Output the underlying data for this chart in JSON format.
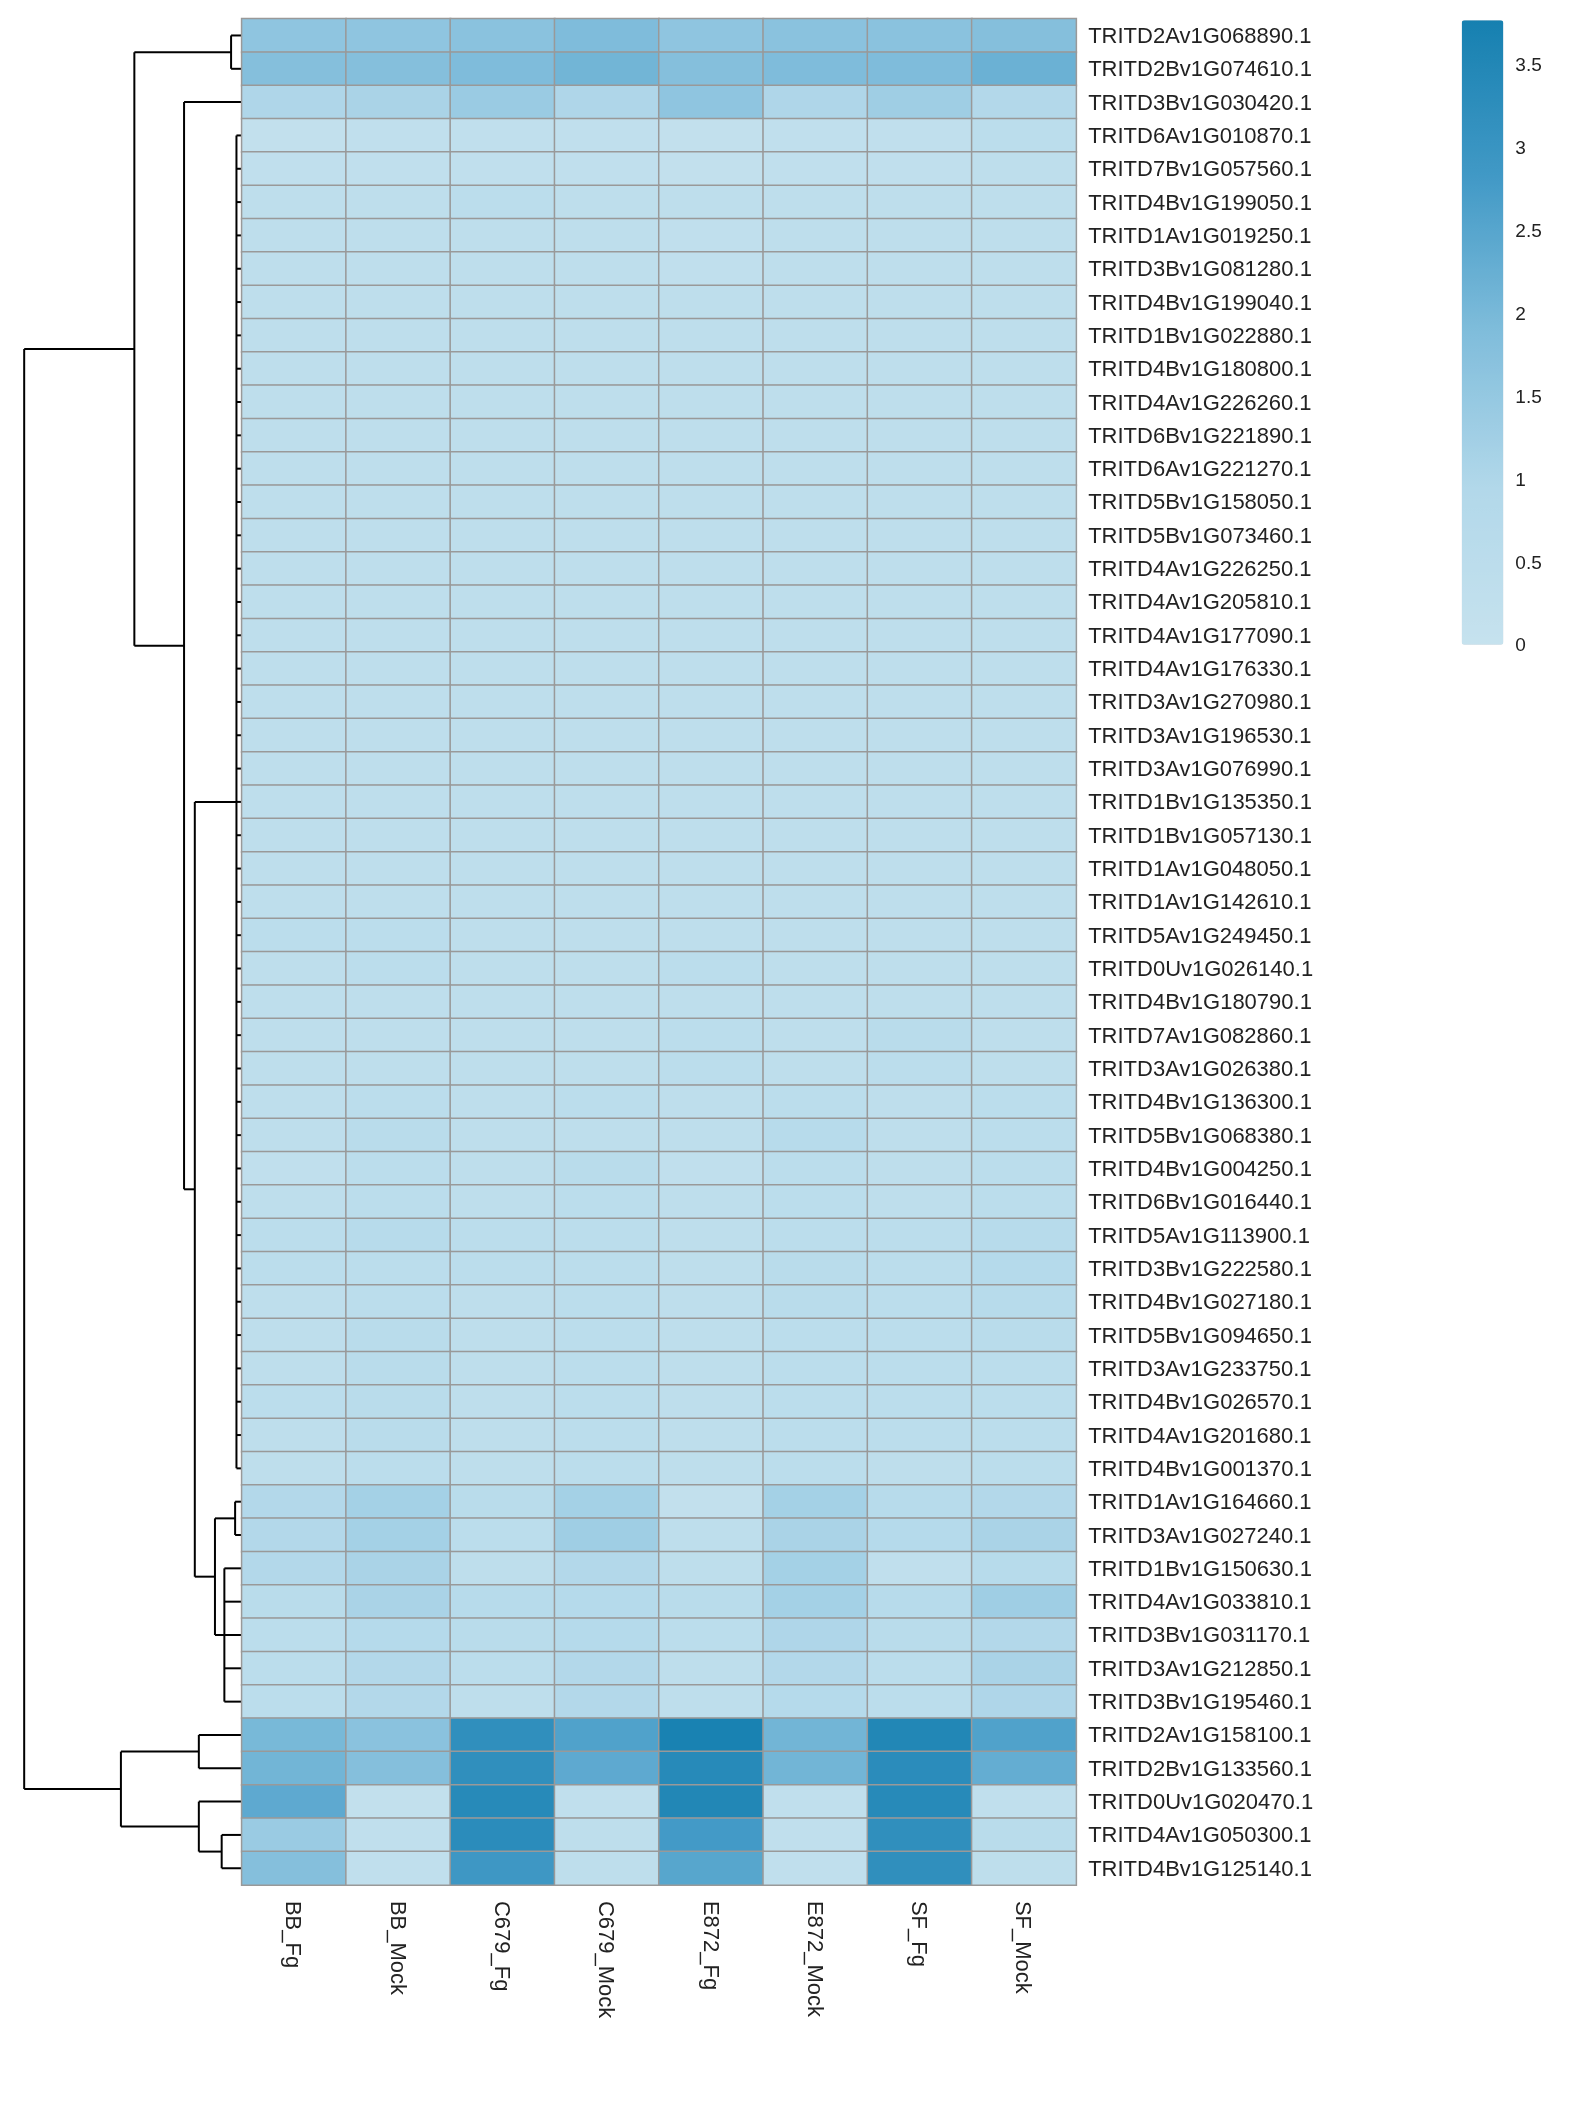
{
  "chart_data": {
    "type": "heatmap",
    "categories": [
      "BB_Fg",
      "BB_Mock",
      "C679_Fg",
      "C679_Mock",
      "E872_Fg",
      "E872_Mock",
      "SF_Fg",
      "SF_Mock"
    ],
    "y_categories": [
      "TRITD2Av1G068890.1",
      "TRITD2Bv1G074610.1",
      "TRITD3Bv1G030420.1",
      "TRITD6Av1G010870.1",
      "TRITD7Bv1G057560.1",
      "TRITD4Bv1G199050.1",
      "TRITD1Av1G019250.1",
      "TRITD3Bv1G081280.1",
      "TRITD4Bv1G199040.1",
      "TRITD1Bv1G022880.1",
      "TRITD4Bv1G180800.1",
      "TRITD4Av1G226260.1",
      "TRITD6Bv1G221890.1",
      "TRITD6Av1G221270.1",
      "TRITD5Bv1G158050.1",
      "TRITD5Bv1G073460.1",
      "TRITD4Av1G226250.1",
      "TRITD4Av1G205810.1",
      "TRITD4Av1G177090.1",
      "TRITD4Av1G176330.1",
      "TRITD3Av1G270980.1",
      "TRITD3Av1G196530.1",
      "TRITD3Av1G076990.1",
      "TRITD1Bv1G135350.1",
      "TRITD1Bv1G057130.1",
      "TRITD1Av1G048050.1",
      "TRITD1Av1G142610.1",
      "TRITD5Av1G249450.1",
      "TRITD0Uv1G026140.1",
      "TRITD4Bv1G180790.1",
      "TRITD7Av1G082860.1",
      "TRITD3Av1G026380.1",
      "TRITD4Bv1G136300.1",
      "TRITD5Bv1G068380.1",
      "TRITD4Bv1G004250.1",
      "TRITD6Bv1G016440.1",
      "TRITD5Av1G113900.1",
      "TRITD3Bv1G222580.1",
      "TRITD4Bv1G027180.1",
      "TRITD5Bv1G094650.1",
      "TRITD3Av1G233750.1",
      "TRITD4Bv1G026570.1",
      "TRITD4Av1G201680.1",
      "TRITD4Bv1G001370.1",
      "TRITD1Av1G164660.1",
      "TRITD3Av1G027240.1",
      "TRITD1Bv1G150630.1",
      "TRITD4Av1G033810.1",
      "TRITD3Bv1G031170.1",
      "TRITD3Av1G212850.1",
      "TRITD3Bv1G195460.1",
      "TRITD2Av1G158100.1",
      "TRITD2Bv1G133560.1",
      "TRITD0Uv1G020470.1",
      "TRITD4Av1G050300.1",
      "TRITD4Bv1G125140.1"
    ],
    "cells": [
      [
        1.6,
        1.6,
        1.7,
        1.9,
        1.6,
        1.7,
        1.7,
        1.8
      ],
      [
        1.8,
        1.8,
        1.9,
        2.1,
        1.8,
        1.9,
        1.9,
        2.2
      ],
      [
        1.0,
        1.1,
        1.4,
        1.0,
        1.6,
        1.0,
        1.3,
        0.9
      ],
      [
        0.2,
        0.3,
        0.3,
        0.3,
        0.2,
        0.3,
        0.3,
        0.5
      ],
      [
        0.3,
        0.3,
        0.3,
        0.3,
        0.2,
        0.3,
        0.3,
        0.4
      ],
      [
        0.4,
        0.4,
        0.5,
        0.4,
        0.4,
        0.4,
        0.4,
        0.4
      ],
      [
        0.4,
        0.4,
        0.4,
        0.4,
        0.3,
        0.4,
        0.4,
        0.4
      ],
      [
        0.4,
        0.4,
        0.4,
        0.4,
        0.3,
        0.4,
        0.4,
        0.4
      ],
      [
        0.4,
        0.4,
        0.4,
        0.4,
        0.4,
        0.4,
        0.4,
        0.4
      ],
      [
        0.4,
        0.4,
        0.4,
        0.4,
        0.4,
        0.4,
        0.4,
        0.4
      ],
      [
        0.4,
        0.4,
        0.4,
        0.4,
        0.4,
        0.4,
        0.4,
        0.4
      ],
      [
        0.4,
        0.4,
        0.4,
        0.4,
        0.4,
        0.4,
        0.4,
        0.4
      ],
      [
        0.4,
        0.4,
        0.4,
        0.4,
        0.4,
        0.4,
        0.4,
        0.4
      ],
      [
        0.4,
        0.4,
        0.4,
        0.4,
        0.4,
        0.4,
        0.4,
        0.4
      ],
      [
        0.4,
        0.4,
        0.4,
        0.4,
        0.4,
        0.4,
        0.4,
        0.4
      ],
      [
        0.4,
        0.4,
        0.4,
        0.4,
        0.4,
        0.4,
        0.4,
        0.4
      ],
      [
        0.4,
        0.4,
        0.4,
        0.4,
        0.4,
        0.4,
        0.4,
        0.4
      ],
      [
        0.4,
        0.4,
        0.4,
        0.4,
        0.4,
        0.4,
        0.4,
        0.4
      ],
      [
        0.4,
        0.4,
        0.4,
        0.4,
        0.4,
        0.4,
        0.4,
        0.4
      ],
      [
        0.4,
        0.4,
        0.4,
        0.4,
        0.4,
        0.4,
        0.4,
        0.4
      ],
      [
        0.4,
        0.4,
        0.4,
        0.4,
        0.4,
        0.4,
        0.4,
        0.4
      ],
      [
        0.4,
        0.4,
        0.4,
        0.4,
        0.4,
        0.4,
        0.4,
        0.4
      ],
      [
        0.4,
        0.4,
        0.4,
        0.4,
        0.4,
        0.4,
        0.4,
        0.4
      ],
      [
        0.4,
        0.4,
        0.4,
        0.4,
        0.4,
        0.4,
        0.4,
        0.4
      ],
      [
        0.4,
        0.4,
        0.4,
        0.4,
        0.4,
        0.4,
        0.4,
        0.4
      ],
      [
        0.4,
        0.4,
        0.4,
        0.4,
        0.4,
        0.4,
        0.4,
        0.4
      ],
      [
        0.4,
        0.4,
        0.4,
        0.4,
        0.4,
        0.4,
        0.4,
        0.4
      ],
      [
        0.5,
        0.5,
        0.4,
        0.4,
        0.4,
        0.4,
        0.4,
        0.4
      ],
      [
        0.4,
        0.5,
        0.4,
        0.4,
        0.5,
        0.4,
        0.4,
        0.4
      ],
      [
        0.4,
        0.4,
        0.4,
        0.4,
        0.4,
        0.4,
        0.4,
        0.4
      ],
      [
        0.4,
        0.4,
        0.4,
        0.4,
        0.5,
        0.4,
        0.6,
        0.4
      ],
      [
        0.4,
        0.4,
        0.4,
        0.4,
        0.5,
        0.4,
        0.5,
        0.4
      ],
      [
        0.4,
        0.5,
        0.4,
        0.5,
        0.4,
        0.5,
        0.4,
        0.5
      ],
      [
        0.4,
        0.6,
        0.4,
        0.4,
        0.4,
        0.7,
        0.4,
        0.5
      ],
      [
        0.3,
        0.5,
        0.4,
        0.6,
        0.3,
        0.5,
        0.4,
        0.5
      ],
      [
        0.4,
        0.5,
        0.4,
        0.5,
        0.4,
        0.5,
        0.4,
        0.5
      ],
      [
        0.5,
        0.7,
        0.5,
        0.5,
        0.4,
        0.5,
        0.5,
        0.7
      ],
      [
        0.5,
        0.5,
        0.5,
        0.5,
        0.4,
        0.6,
        0.5,
        0.8
      ],
      [
        0.4,
        0.5,
        0.4,
        0.5,
        0.4,
        0.6,
        0.5,
        0.7
      ],
      [
        0.4,
        0.6,
        0.4,
        0.5,
        0.4,
        0.5,
        0.5,
        0.6
      ],
      [
        0.4,
        0.6,
        0.4,
        0.5,
        0.4,
        0.5,
        0.5,
        0.5
      ],
      [
        0.5,
        0.6,
        0.4,
        0.5,
        0.4,
        0.5,
        0.5,
        0.5
      ],
      [
        0.4,
        0.6,
        0.4,
        0.5,
        0.4,
        0.5,
        0.5,
        0.5
      ],
      [
        0.4,
        0.5,
        0.4,
        0.5,
        0.4,
        0.5,
        0.4,
        0.5
      ],
      [
        0.9,
        1.2,
        0.6,
        1.2,
        0.2,
        1.2,
        0.7,
        0.9
      ],
      [
        0.9,
        1.2,
        0.5,
        1.3,
        0.4,
        1.1,
        0.8,
        1.1
      ],
      [
        0.9,
        1.1,
        0.4,
        0.9,
        0.4,
        1.2,
        0.3,
        0.7
      ],
      [
        0.6,
        1.1,
        0.7,
        0.8,
        0.6,
        1.2,
        0.7,
        1.3
      ],
      [
        0.5,
        0.8,
        0.6,
        0.8,
        0.5,
        1.0,
        0.6,
        0.9
      ],
      [
        0.5,
        0.9,
        0.5,
        0.9,
        0.4,
        0.9,
        0.5,
        1.1
      ],
      [
        0.5,
        0.9,
        0.4,
        0.9,
        0.4,
        0.8,
        0.5,
        1.0
      ],
      [
        2.0,
        1.7,
        3.2,
        2.6,
        3.7,
        2.1,
        3.5,
        2.6
      ],
      [
        2.1,
        1.8,
        3.2,
        2.4,
        3.4,
        2.1,
        3.3,
        2.3
      ],
      [
        2.4,
        0.2,
        3.4,
        0.3,
        3.5,
        0.3,
        3.4,
        0.3
      ],
      [
        1.4,
        0.3,
        3.3,
        0.4,
        2.8,
        0.3,
        3.2,
        0.6
      ],
      [
        1.8,
        0.3,
        2.9,
        0.4,
        2.5,
        0.3,
        3.2,
        0.4
      ]
    ],
    "clim": [
      0,
      3.77
    ],
    "cticks": [
      0,
      0.5,
      1,
      1.5,
      2,
      2.5,
      3,
      3.5
    ]
  }
}
